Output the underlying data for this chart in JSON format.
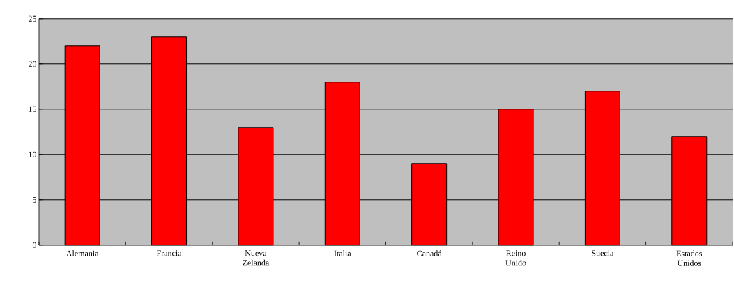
{
  "chart_data": {
    "type": "bar",
    "categories": [
      "Alemania",
      "Francia",
      "Nueva Zelanda",
      "Italia",
      "Canadá",
      "Reino Unido",
      "Suecia",
      "Estados Unidos"
    ],
    "values": [
      22,
      23,
      13,
      18,
      9,
      15,
      17,
      12
    ],
    "color": "#ff0000",
    "ylim": [
      0,
      25
    ],
    "yticks": [
      0,
      5,
      10,
      15,
      20,
      25
    ],
    "grid": "y"
  }
}
